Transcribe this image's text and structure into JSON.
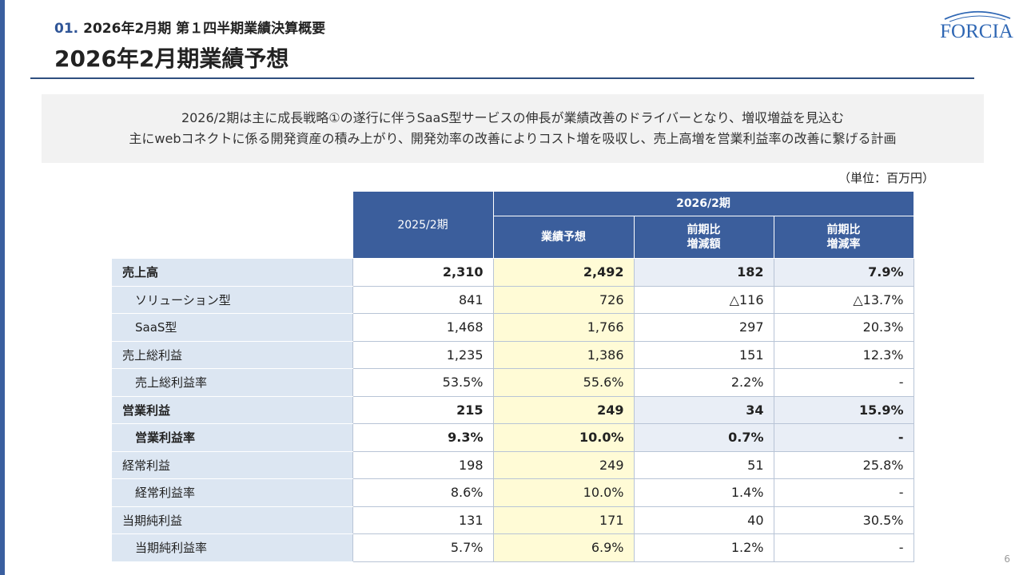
{
  "header": {
    "section_number": "01.",
    "section_title": "2026年2月期 第１四半期業績決算概要",
    "page_title": "2026年2月期業績予想"
  },
  "logo": {
    "text": "FORCIA",
    "color": "#2f67b4"
  },
  "summary": {
    "line1": "2026/2期は主に成長戦略①の遂行に伴うSaaS型サービスの伸長が業績改善のドライバーとなり、増収増益を見込む",
    "line2": "主にwebコネクトに係る開発資産の積み上がり、開発効率の改善によりコスト増を吸収し、売上高増を営業利益率の改善に繋げる計画"
  },
  "unit_note": "（単位：百万円）",
  "table": {
    "col_prev": "2025/2期",
    "col_group": "2026/2期",
    "col_forecast": "業績予想",
    "col_diff_line1": "前期比",
    "col_diff_line2": "増減額",
    "col_rate_line1": "前期比",
    "col_rate_line2": "増減率",
    "rows": [
      {
        "label": "売上高",
        "prev": "2,310",
        "forecast": "2,492",
        "diff": "182",
        "rate": "7.9%"
      },
      {
        "label": "ソリューション型",
        "prev": "841",
        "forecast": "726",
        "diff": "△116",
        "rate": "△13.7%"
      },
      {
        "label": "SaaS型",
        "prev": "1,468",
        "forecast": "1,766",
        "diff": "297",
        "rate": "20.3%"
      },
      {
        "label": "売上総利益",
        "prev": "1,235",
        "forecast": "1,386",
        "diff": "151",
        "rate": "12.3%"
      },
      {
        "label": "売上総利益率",
        "prev": "53.5%",
        "forecast": "55.6%",
        "diff": "2.2%",
        "rate": "-"
      },
      {
        "label": "営業利益",
        "prev": "215",
        "forecast": "249",
        "diff": "34",
        "rate": "15.9%"
      },
      {
        "label": "営業利益率",
        "prev": "9.3%",
        "forecast": "10.0%",
        "diff": "0.7%",
        "rate": "-"
      },
      {
        "label": "経常利益",
        "prev": "198",
        "forecast": "249",
        "diff": "51",
        "rate": "25.8%"
      },
      {
        "label": "経常利益率",
        "prev": "8.6%",
        "forecast": "10.0%",
        "diff": "1.4%",
        "rate": "-"
      },
      {
        "label": "当期純利益",
        "prev": "131",
        "forecast": "171",
        "diff": "40",
        "rate": "30.5%"
      },
      {
        "label": "当期純利益率",
        "prev": "5.7%",
        "forecast": "6.9%",
        "diff": "1.2%",
        "rate": "-"
      }
    ]
  },
  "page_number": "6"
}
